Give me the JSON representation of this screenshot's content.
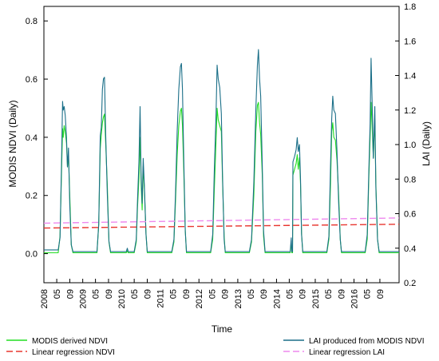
{
  "chart_data": {
    "type": "line",
    "xlabel": "Time",
    "y_left_label": "MODIS NDVI (Daily)",
    "y_right_label": "LAI (Daily)",
    "y_left_lim": [
      -0.1,
      0.85
    ],
    "y_right_lim": [
      0.2,
      1.8
    ],
    "y_left_ticks": [
      "0.0",
      "0.2",
      "0.4",
      "0.6",
      "0.8"
    ],
    "y_left_tick_values": [
      0.0,
      0.2,
      0.4,
      0.6,
      0.8
    ],
    "y_right_ticks": [
      "0.2",
      "0.4",
      "0.6",
      "0.8",
      "1.0",
      "1.2",
      "1.4",
      "1.6",
      "1.8"
    ],
    "y_right_tick_values": [
      0.2,
      0.4,
      0.6,
      0.8,
      1.0,
      1.2,
      1.4,
      1.6,
      1.8
    ],
    "x_lim": [
      "2008-01-01",
      "2017-03-01"
    ],
    "x_tick_labels": [
      {
        "label": "2008",
        "date": "2008-01-01"
      },
      {
        "label": "05",
        "date": "2008-05-01"
      },
      {
        "label": "09",
        "date": "2008-09-01"
      },
      {
        "label": "2009",
        "date": "2009-01-01"
      },
      {
        "label": "05",
        "date": "2009-05-01"
      },
      {
        "label": "09",
        "date": "2009-09-01"
      },
      {
        "label": "2010",
        "date": "2010-01-01"
      },
      {
        "label": "05",
        "date": "2010-05-01"
      },
      {
        "label": "09",
        "date": "2010-09-01"
      },
      {
        "label": "2011",
        "date": "2011-01-01"
      },
      {
        "label": "05",
        "date": "2011-05-01"
      },
      {
        "label": "09",
        "date": "2011-09-01"
      },
      {
        "label": "2012",
        "date": "2012-01-01"
      },
      {
        "label": "05",
        "date": "2012-05-01"
      },
      {
        "label": "09",
        "date": "2012-09-01"
      },
      {
        "label": "2013",
        "date": "2013-01-01"
      },
      {
        "label": "05",
        "date": "2013-05-01"
      },
      {
        "label": "09",
        "date": "2013-09-01"
      },
      {
        "label": "2014",
        "date": "2014-01-01"
      },
      {
        "label": "05",
        "date": "2014-05-01"
      },
      {
        "label": "09",
        "date": "2014-09-01"
      },
      {
        "label": "2015",
        "date": "2015-01-01"
      },
      {
        "label": "05",
        "date": "2015-05-01"
      },
      {
        "label": "09",
        "date": "2015-09-01"
      },
      {
        "label": "2016",
        "date": "2016-01-01"
      },
      {
        "label": "05",
        "date": "2016-05-01"
      },
      {
        "label": "09",
        "date": "2016-09-01"
      }
    ],
    "series": [
      {
        "name": "MODIS derived NDVI",
        "axis": "left",
        "color": "#22dd22",
        "style": "solid",
        "points": [
          [
            "2008-01-01",
            0.003
          ],
          [
            "2008-05-15",
            0.003
          ],
          [
            "2008-06-01",
            0.06
          ],
          [
            "2008-06-15",
            0.28
          ],
          [
            "2008-06-25",
            0.43
          ],
          [
            "2008-07-01",
            0.4
          ],
          [
            "2008-07-10",
            0.44
          ],
          [
            "2008-07-20",
            0.42
          ],
          [
            "2008-08-01",
            0.38
          ],
          [
            "2008-08-10",
            0.3
          ],
          [
            "2008-08-20",
            0.34
          ],
          [
            "2008-09-01",
            0.2
          ],
          [
            "2008-09-15",
            0.03
          ],
          [
            "2008-10-01",
            0.003
          ],
          [
            "2009-05-15",
            0.003
          ],
          [
            "2009-06-01",
            0.1
          ],
          [
            "2009-06-15",
            0.36
          ],
          [
            "2009-06-25",
            0.41
          ],
          [
            "2009-07-05",
            0.45
          ],
          [
            "2009-07-15",
            0.47
          ],
          [
            "2009-07-25",
            0.48
          ],
          [
            "2009-08-05",
            0.38
          ],
          [
            "2009-08-20",
            0.24
          ],
          [
            "2009-09-05",
            0.04
          ],
          [
            "2009-09-20",
            0.003
          ],
          [
            "2010-02-15",
            0.003
          ],
          [
            "2010-02-25",
            0.01
          ],
          [
            "2010-03-05",
            0.003
          ],
          [
            "2010-05-01",
            0.003
          ],
          [
            "2010-05-20",
            0.04
          ],
          [
            "2010-06-01",
            0.16
          ],
          [
            "2010-06-15",
            0.26
          ],
          [
            "2010-06-25",
            0.4
          ],
          [
            "2010-07-05",
            0.24
          ],
          [
            "2010-07-15",
            0.15
          ],
          [
            "2010-07-25",
            0.3
          ],
          [
            "2010-08-05",
            0.22
          ],
          [
            "2010-08-20",
            0.07
          ],
          [
            "2010-09-01",
            0.003
          ],
          [
            "2011-04-20",
            0.003
          ],
          [
            "2011-05-10",
            0.04
          ],
          [
            "2011-05-25",
            0.18
          ],
          [
            "2011-06-10",
            0.34
          ],
          [
            "2011-06-25",
            0.44
          ],
          [
            "2011-07-10",
            0.49
          ],
          [
            "2011-07-20",
            0.5
          ],
          [
            "2011-07-30",
            0.44
          ],
          [
            "2011-08-10",
            0.3
          ],
          [
            "2011-08-25",
            0.08
          ],
          [
            "2011-09-05",
            0.003
          ],
          [
            "2012-04-20",
            0.003
          ],
          [
            "2012-05-10",
            0.05
          ],
          [
            "2012-05-25",
            0.22
          ],
          [
            "2012-06-10",
            0.39
          ],
          [
            "2012-06-20",
            0.5
          ],
          [
            "2012-07-01",
            0.46
          ],
          [
            "2012-07-15",
            0.44
          ],
          [
            "2012-07-30",
            0.42
          ],
          [
            "2012-08-10",
            0.25
          ],
          [
            "2012-08-25",
            0.06
          ],
          [
            "2012-09-05",
            0.003
          ],
          [
            "2013-04-20",
            0.003
          ],
          [
            "2013-05-10",
            0.04
          ],
          [
            "2013-06-01",
            0.2
          ],
          [
            "2013-06-20",
            0.42
          ],
          [
            "2013-07-05",
            0.51
          ],
          [
            "2013-07-15",
            0.52
          ],
          [
            "2013-07-25",
            0.45
          ],
          [
            "2013-08-05",
            0.41
          ],
          [
            "2013-08-20",
            0.27
          ],
          [
            "2013-09-01",
            0.06
          ],
          [
            "2013-09-15",
            0.003
          ],
          [
            "2014-04-10",
            0.003
          ],
          [
            "2014-05-10",
            0.003
          ],
          [
            "2014-05-20",
            0.04
          ],
          [
            "2014-05-25",
            0.003
          ],
          [
            "2014-06-01",
            0.003
          ],
          [
            "2014-06-05",
            0.27
          ],
          [
            "2014-06-20",
            0.29
          ],
          [
            "2014-07-05",
            0.31
          ],
          [
            "2014-07-15",
            0.34
          ],
          [
            "2014-07-25",
            0.29
          ],
          [
            "2014-08-05",
            0.33
          ],
          [
            "2014-08-15",
            0.24
          ],
          [
            "2014-08-25",
            0.07
          ],
          [
            "2014-09-05",
            0.003
          ],
          [
            "2015-04-20",
            0.003
          ],
          [
            "2015-05-10",
            0.05
          ],
          [
            "2015-05-25",
            0.24
          ],
          [
            "2015-06-05",
            0.42
          ],
          [
            "2015-06-15",
            0.45
          ],
          [
            "2015-06-25",
            0.4
          ],
          [
            "2015-07-10",
            0.39
          ],
          [
            "2015-07-25",
            0.32
          ],
          [
            "2015-08-10",
            0.2
          ],
          [
            "2015-08-25",
            0.05
          ],
          [
            "2015-09-05",
            0.003
          ],
          [
            "2016-04-15",
            0.003
          ],
          [
            "2016-05-05",
            0.05
          ],
          [
            "2016-05-20",
            0.26
          ],
          [
            "2016-06-01",
            0.4
          ],
          [
            "2016-06-10",
            0.52
          ],
          [
            "2016-06-20",
            0.44
          ],
          [
            "2016-07-01",
            0.33
          ],
          [
            "2016-07-15",
            0.46
          ],
          [
            "2016-07-25",
            0.24
          ],
          [
            "2016-08-10",
            0.05
          ],
          [
            "2016-08-25",
            0.003
          ],
          [
            "2017-03-01",
            0.003
          ]
        ]
      },
      {
        "name": "LAI produced from MODIS NDVI",
        "axis": "right",
        "color": "#1b6f88",
        "style": "solid",
        "points": [
          [
            "2008-01-01",
            0.39
          ],
          [
            "2008-05-15",
            0.39
          ],
          [
            "2008-06-01",
            0.46
          ],
          [
            "2008-06-15",
            0.9
          ],
          [
            "2008-06-25",
            1.25
          ],
          [
            "2008-07-01",
            1.2
          ],
          [
            "2008-07-10",
            1.22
          ],
          [
            "2008-07-20",
            1.17
          ],
          [
            "2008-08-01",
            1.04
          ],
          [
            "2008-08-10",
            0.87
          ],
          [
            "2008-08-20",
            0.98
          ],
          [
            "2008-09-01",
            0.65
          ],
          [
            "2008-09-15",
            0.42
          ],
          [
            "2008-10-01",
            0.38
          ],
          [
            "2009-05-15",
            0.38
          ],
          [
            "2009-06-01",
            0.54
          ],
          [
            "2009-06-15",
            1.05
          ],
          [
            "2009-06-25",
            1.1
          ],
          [
            "2009-07-05",
            1.32
          ],
          [
            "2009-07-15",
            1.38
          ],
          [
            "2009-07-25",
            1.39
          ],
          [
            "2009-08-05",
            1.06
          ],
          [
            "2009-08-20",
            0.72
          ],
          [
            "2009-09-05",
            0.44
          ],
          [
            "2009-09-20",
            0.38
          ],
          [
            "2010-02-15",
            0.38
          ],
          [
            "2010-02-25",
            0.4
          ],
          [
            "2010-03-05",
            0.38
          ],
          [
            "2010-05-01",
            0.38
          ],
          [
            "2010-05-20",
            0.45
          ],
          [
            "2010-06-01",
            0.68
          ],
          [
            "2010-06-15",
            0.9
          ],
          [
            "2010-06-25",
            1.22
          ],
          [
            "2010-07-05",
            0.82
          ],
          [
            "2010-07-15",
            0.66
          ],
          [
            "2010-07-25",
            0.92
          ],
          [
            "2010-08-05",
            0.76
          ],
          [
            "2010-08-20",
            0.48
          ],
          [
            "2010-09-01",
            0.38
          ],
          [
            "2011-04-20",
            0.38
          ],
          [
            "2011-05-10",
            0.45
          ],
          [
            "2011-05-25",
            0.72
          ],
          [
            "2011-06-10",
            1.08
          ],
          [
            "2011-06-25",
            1.32
          ],
          [
            "2011-07-10",
            1.45
          ],
          [
            "2011-07-20",
            1.47
          ],
          [
            "2011-07-30",
            1.32
          ],
          [
            "2011-08-10",
            0.95
          ],
          [
            "2011-08-25",
            0.5
          ],
          [
            "2011-09-05",
            0.38
          ],
          [
            "2012-04-20",
            0.38
          ],
          [
            "2012-05-10",
            0.48
          ],
          [
            "2012-05-25",
            0.85
          ],
          [
            "2012-06-10",
            1.18
          ],
          [
            "2012-06-20",
            1.46
          ],
          [
            "2012-07-01",
            1.38
          ],
          [
            "2012-07-15",
            1.33
          ],
          [
            "2012-07-30",
            1.18
          ],
          [
            "2012-08-10",
            0.82
          ],
          [
            "2012-08-25",
            0.45
          ],
          [
            "2012-09-05",
            0.38
          ],
          [
            "2013-04-20",
            0.38
          ],
          [
            "2013-05-10",
            0.45
          ],
          [
            "2013-06-01",
            0.78
          ],
          [
            "2013-06-20",
            1.2
          ],
          [
            "2013-07-05",
            1.46
          ],
          [
            "2013-07-15",
            1.55
          ],
          [
            "2013-07-25",
            1.38
          ],
          [
            "2013-08-05",
            1.28
          ],
          [
            "2013-08-20",
            0.88
          ],
          [
            "2013-09-01",
            0.5
          ],
          [
            "2013-09-15",
            0.38
          ],
          [
            "2014-04-10",
            0.38
          ],
          [
            "2014-05-10",
            0.38
          ],
          [
            "2014-05-20",
            0.46
          ],
          [
            "2014-05-25",
            0.38
          ],
          [
            "2014-06-01",
            0.38
          ],
          [
            "2014-06-05",
            0.9
          ],
          [
            "2014-06-20",
            0.93
          ],
          [
            "2014-07-05",
            0.97
          ],
          [
            "2014-07-15",
            1.04
          ],
          [
            "2014-07-25",
            0.96
          ],
          [
            "2014-08-05",
            1.0
          ],
          [
            "2014-08-15",
            0.8
          ],
          [
            "2014-08-25",
            0.48
          ],
          [
            "2014-09-05",
            0.38
          ],
          [
            "2015-04-20",
            0.38
          ],
          [
            "2015-05-10",
            0.47
          ],
          [
            "2015-05-25",
            0.88
          ],
          [
            "2015-06-05",
            1.15
          ],
          [
            "2015-06-15",
            1.28
          ],
          [
            "2015-06-25",
            1.2
          ],
          [
            "2015-07-10",
            1.18
          ],
          [
            "2015-07-25",
            0.96
          ],
          [
            "2015-08-10",
            0.66
          ],
          [
            "2015-08-25",
            0.45
          ],
          [
            "2015-09-05",
            0.38
          ],
          [
            "2016-04-15",
            0.38
          ],
          [
            "2016-05-05",
            0.48
          ],
          [
            "2016-05-20",
            0.85
          ],
          [
            "2016-06-01",
            1.12
          ],
          [
            "2016-06-10",
            1.5
          ],
          [
            "2016-06-20",
            1.25
          ],
          [
            "2016-07-01",
            0.92
          ],
          [
            "2016-07-15",
            1.22
          ],
          [
            "2016-07-25",
            0.75
          ],
          [
            "2016-08-10",
            0.45
          ],
          [
            "2016-08-25",
            0.38
          ],
          [
            "2017-03-01",
            0.38
          ]
        ]
      },
      {
        "name": "Linear regression NDVI",
        "axis": "left",
        "color": "#e8362f",
        "style": "dashed",
        "points": [
          [
            "2008-01-01",
            0.088
          ],
          [
            "2017-03-01",
            0.101
          ]
        ]
      },
      {
        "name": "Linear regression LAI",
        "axis": "right",
        "color": "#ee88ee",
        "style": "dashed",
        "points": [
          [
            "2008-01-01",
            0.545
          ],
          [
            "2017-03-01",
            0.575
          ]
        ]
      }
    ],
    "legend": {
      "left": [
        {
          "label": "MODIS derived NDVI",
          "color": "#22dd22",
          "style": "solid"
        },
        {
          "label": "Linear regression NDVI",
          "color": "#e8362f",
          "style": "dashed"
        }
      ],
      "right": [
        {
          "label": "LAI produced from MODIS NDVI",
          "color": "#1b6f88",
          "style": "solid"
        },
        {
          "label": "Linear regression LAI",
          "color": "#ee88ee",
          "style": "dashed"
        }
      ]
    }
  }
}
